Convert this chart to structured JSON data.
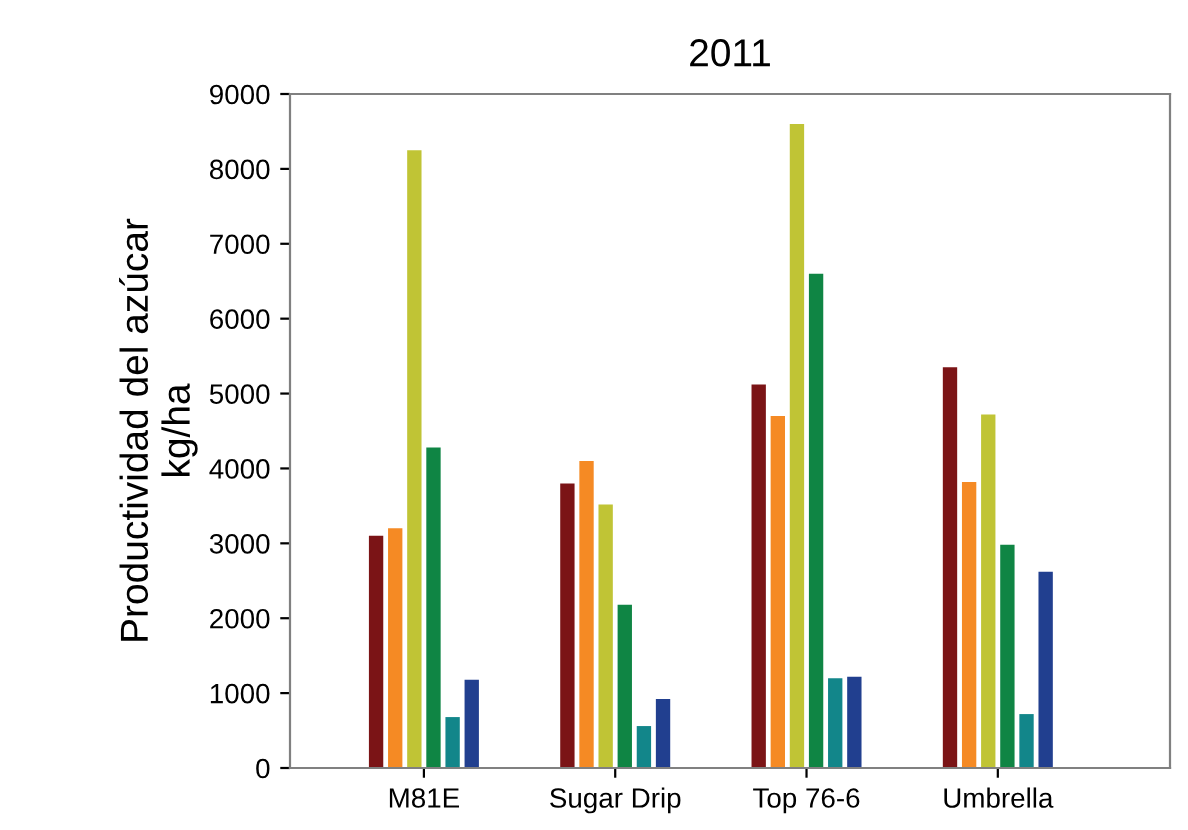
{
  "chart_data": {
    "type": "bar",
    "title": "2011",
    "ylabel": "Productividad del azúcar\nkg/ha",
    "categories": [
      "M81E",
      "Sugar Drip",
      "Top 76-6",
      "Umbrella"
    ],
    "series": [
      {
        "color": "#7b1416",
        "values": [
          3100,
          3800,
          5120,
          5350
        ]
      },
      {
        "color": "#f58a24",
        "values": [
          3200,
          4100,
          4700,
          3820
        ]
      },
      {
        "color": "#c0c435",
        "values": [
          8250,
          3520,
          8600,
          4720
        ]
      },
      {
        "color": "#0f8544",
        "values": [
          4280,
          2180,
          6600,
          2980
        ]
      },
      {
        "color": "#12868a",
        "values": [
          680,
          560,
          1200,
          720
        ]
      },
      {
        "color": "#213f8f",
        "values": [
          1180,
          920,
          1220,
          2620
        ]
      }
    ],
    "ylim": [
      0,
      9000
    ],
    "yticks": [
      0,
      1000,
      2000,
      3000,
      4000,
      5000,
      6000,
      7000,
      8000,
      9000
    ],
    "grid": false,
    "legend": false
  }
}
